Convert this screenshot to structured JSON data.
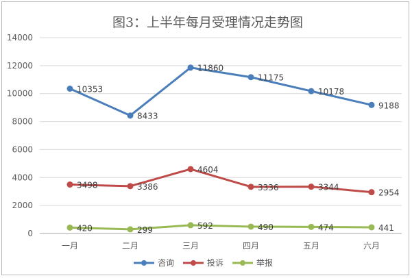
{
  "chart_data": {
    "type": "line",
    "title": "图3：上半年每月受理情况走势图",
    "categories": [
      "一月",
      "二月",
      "三月",
      "四月",
      "五月",
      "六月"
    ],
    "ylim": [
      0,
      14000
    ],
    "yticks": [
      0,
      2000,
      4000,
      6000,
      8000,
      10000,
      12000,
      14000
    ],
    "grid": true,
    "legend_position": "bottom",
    "series": [
      {
        "name": "咨询",
        "color": "#4a7ebb",
        "values": [
          10353,
          8433,
          11860,
          11175,
          10178,
          9188
        ]
      },
      {
        "name": "投诉",
        "color": "#be4b48",
        "values": [
          3498,
          3386,
          4604,
          3336,
          3344,
          2954
        ]
      },
      {
        "name": "举报",
        "color": "#98b954",
        "values": [
          420,
          299,
          592,
          490,
          474,
          441
        ]
      }
    ]
  }
}
